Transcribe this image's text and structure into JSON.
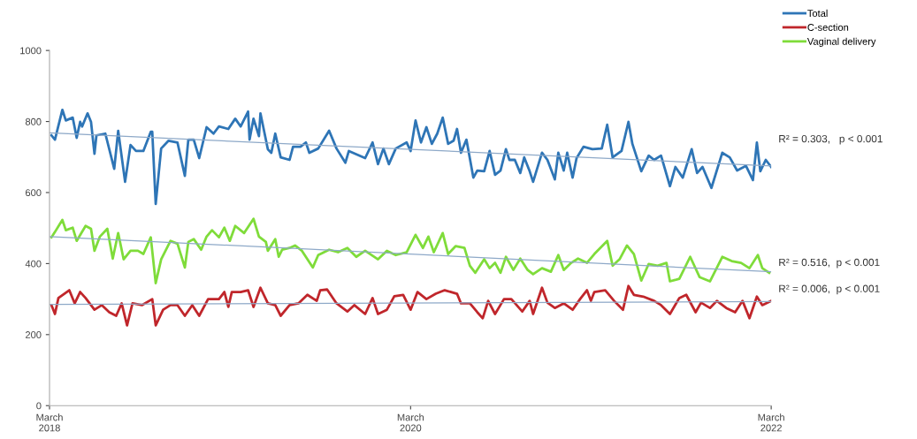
{
  "chart_data": {
    "type": "line",
    "xlim": [
      "2018-03-01",
      "2022-03-01"
    ],
    "xticks": [
      {
        "value": "2018-03-01",
        "label": "March\n2018"
      },
      {
        "value": "2020-03-01",
        "label": "March\n2020"
      },
      {
        "value": "2022-03-01",
        "label": "March\n2022"
      }
    ],
    "ylim": [
      0,
      1000
    ],
    "yticks": [
      0,
      200,
      400,
      600,
      800,
      1000
    ],
    "legend": "top right",
    "marker": "none",
    "line_style": "solid",
    "series": [
      {
        "name": "Total",
        "color": "#2e75b6",
        "x": [
          "2018-03-05",
          "2018-03-12",
          "2018-03-27",
          "2018-04-03",
          "2018-04-17",
          "2018-04-25",
          "2018-05-02",
          "2018-05-06",
          "2018-05-17",
          "2018-05-24",
          "2018-05-31",
          "2018-06-04",
          "2018-06-22",
          "2018-07-10",
          "2018-07-18",
          "2018-08-01",
          "2018-08-12",
          "2018-08-23",
          "2018-09-07",
          "2018-09-22",
          "2018-09-25",
          "2018-10-02",
          "2018-10-13",
          "2018-10-28",
          "2018-11-15",
          "2018-11-30",
          "2018-12-07",
          "2018-12-18",
          "2018-12-29",
          "2019-01-13",
          "2019-01-27",
          "2019-02-07",
          "2019-02-26",
          "2019-03-12",
          "2019-03-23",
          "2019-04-07",
          "2019-04-10",
          "2019-04-18",
          "2019-04-29",
          "2019-05-02",
          "2019-05-17",
          "2019-05-24",
          "2019-06-01",
          "2019-06-12",
          "2019-06-30",
          "2019-07-07",
          "2019-07-22",
          "2019-08-02",
          "2019-08-09",
          "2019-08-27",
          "2019-09-18",
          "2019-10-03",
          "2019-10-21",
          "2019-10-28",
          "2019-11-30",
          "2019-12-15",
          "2019-12-26",
          "2020-01-06",
          "2020-01-17",
          "2020-01-31",
          "2020-02-22",
          "2020-03-01",
          "2020-03-11",
          "2020-03-22",
          "2020-04-02",
          "2020-04-13",
          "2020-04-24",
          "2020-05-05",
          "2020-05-16",
          "2020-05-27",
          "2020-06-03",
          "2020-06-11",
          "2020-06-22",
          "2020-07-06",
          "2020-07-14",
          "2020-07-28",
          "2020-08-08",
          "2020-08-19",
          "2020-08-30",
          "2020-09-10",
          "2020-09-17",
          "2020-09-28",
          "2020-10-09",
          "2020-10-17",
          "2020-10-28",
          "2020-11-04",
          "2020-11-22",
          "2020-12-03",
          "2020-12-18",
          "2020-12-25",
          "2021-01-05",
          "2021-01-12",
          "2021-01-23",
          "2021-01-31",
          "2021-02-14",
          "2021-03-04",
          "2021-03-23",
          "2021-04-03",
          "2021-04-14",
          "2021-05-02",
          "2021-05-16",
          "2021-05-24",
          "2021-06-11",
          "2021-06-26",
          "2021-07-07",
          "2021-07-21",
          "2021-08-08",
          "2021-08-19",
          "2021-09-03",
          "2021-09-21",
          "2021-10-02",
          "2021-10-13",
          "2021-10-31",
          "2021-11-22",
          "2021-12-07",
          "2021-12-22",
          "2022-01-09",
          "2022-01-23",
          "2022-01-31",
          "2022-02-07",
          "2022-02-18",
          "2022-03-01"
        ],
        "values": [
          761,
          749,
          833,
          803,
          811,
          754,
          799,
          786,
          823,
          799,
          709,
          761,
          766,
          667,
          774,
          630,
          734,
          717,
          717,
          771,
          771,
          568,
          724,
          746,
          741,
          647,
          749,
          749,
          697,
          784,
          766,
          786,
          779,
          808,
          786,
          828,
          749,
          808,
          759,
          823,
          722,
          712,
          766,
          699,
          692,
          729,
          729,
          741,
          712,
          724,
          774,
          724,
          684,
          717,
          697,
          741,
          680,
          724,
          680,
          724,
          741,
          717,
          803,
          741,
          784,
          737,
          766,
          811,
          737,
          746,
          779,
          712,
          749,
          642,
          662,
          660,
          717,
          650,
          662,
          722,
          692,
          692,
          655,
          699,
          660,
          630,
          712,
          692,
          637,
          712,
          662,
          712,
          642,
          697,
          729,
          722,
          724,
          791,
          699,
          717,
          799,
          737,
          660,
          704,
          692,
          704,
          618,
          672,
          642,
          722,
          655,
          672,
          613,
          712,
          699,
          662,
          675,
          635,
          741,
          660,
          692,
          672
        ]
      },
      {
        "name": "C-section",
        "color": "#c0262b",
        "x": [
          "2018-03-05",
          "2018-03-12",
          "2018-03-19",
          "2018-04-10",
          "2018-04-21",
          "2018-05-02",
          "2018-05-13",
          "2018-05-31",
          "2018-06-15",
          "2018-06-30",
          "2018-07-14",
          "2018-07-25",
          "2018-08-05",
          "2018-08-16",
          "2018-09-04",
          "2018-09-25",
          "2018-10-02",
          "2018-10-17",
          "2018-11-01",
          "2018-11-15",
          "2018-11-30",
          "2018-12-15",
          "2018-12-29",
          "2019-01-16",
          "2019-02-07",
          "2019-02-18",
          "2019-02-26",
          "2019-03-05",
          "2019-03-23",
          "2019-04-07",
          "2019-04-18",
          "2019-05-02",
          "2019-05-17",
          "2019-06-01",
          "2019-06-12",
          "2019-06-30",
          "2019-07-18",
          "2019-08-05",
          "2019-08-24",
          "2019-08-31",
          "2019-09-14",
          "2019-10-03",
          "2019-10-25",
          "2019-11-08",
          "2019-11-30",
          "2019-12-15",
          "2019-12-26",
          "2020-01-13",
          "2020-01-28",
          "2020-02-15",
          "2020-03-01",
          "2020-03-15",
          "2020-04-02",
          "2020-04-21",
          "2020-05-09",
          "2020-06-03",
          "2020-06-11",
          "2020-06-29",
          "2020-07-14",
          "2020-07-25",
          "2020-08-05",
          "2020-08-19",
          "2020-09-06",
          "2020-09-21",
          "2020-10-13",
          "2020-10-28",
          "2020-11-04",
          "2020-11-22",
          "2020-12-03",
          "2020-12-18",
          "2021-01-05",
          "2021-01-23",
          "2021-02-07",
          "2021-02-21",
          "2021-03-01",
          "2021-03-08",
          "2021-03-30",
          "2021-04-17",
          "2021-05-05",
          "2021-05-16",
          "2021-05-27",
          "2021-06-15",
          "2021-07-07",
          "2021-07-21",
          "2021-08-08",
          "2021-08-27",
          "2021-09-10",
          "2021-09-29",
          "2021-10-10",
          "2021-10-28",
          "2021-11-11",
          "2021-11-30",
          "2021-12-18",
          "2022-01-02",
          "2022-01-16",
          "2022-01-31",
          "2022-02-11",
          "2022-03-01"
        ],
        "values": [
          283,
          258,
          303,
          325,
          288,
          320,
          303,
          270,
          283,
          263,
          253,
          288,
          226,
          288,
          283,
          300,
          226,
          270,
          283,
          283,
          253,
          283,
          253,
          300,
          300,
          320,
          278,
          320,
          320,
          325,
          278,
          332,
          288,
          283,
          253,
          283,
          288,
          312,
          295,
          325,
          327,
          288,
          265,
          283,
          258,
          303,
          258,
          270,
          308,
          312,
          270,
          320,
          300,
          315,
          325,
          315,
          288,
          288,
          263,
          246,
          295,
          258,
          300,
          300,
          265,
          295,
          258,
          332,
          290,
          275,
          288,
          270,
          300,
          325,
          295,
          320,
          325,
          295,
          270,
          337,
          312,
          307,
          295,
          283,
          258,
          303,
          312,
          263,
          290,
          275,
          295,
          275,
          263,
          295,
          246,
          307,
          283,
          295
        ]
      },
      {
        "name": "Vaginal delivery",
        "color": "#7fdc3a",
        "x": [
          "2018-03-05",
          "2018-03-12",
          "2018-03-27",
          "2018-04-03",
          "2018-04-17",
          "2018-04-25",
          "2018-05-13",
          "2018-05-24",
          "2018-05-31",
          "2018-06-11",
          "2018-06-26",
          "2018-07-07",
          "2018-07-18",
          "2018-07-29",
          "2018-08-12",
          "2018-08-27",
          "2018-09-07",
          "2018-09-22",
          "2018-10-02",
          "2018-10-13",
          "2018-11-01",
          "2018-11-15",
          "2018-11-30",
          "2018-12-07",
          "2018-12-18",
          "2019-01-02",
          "2019-01-13",
          "2019-01-24",
          "2019-02-07",
          "2019-02-18",
          "2019-03-01",
          "2019-03-12",
          "2019-03-30",
          "2019-04-18",
          "2019-04-29",
          "2019-05-13",
          "2019-05-17",
          "2019-06-01",
          "2019-06-08",
          "2019-06-15",
          "2019-06-30",
          "2019-07-11",
          "2019-07-25",
          "2019-08-16",
          "2019-08-27",
          "2019-09-18",
          "2019-10-06",
          "2019-10-25",
          "2019-11-12",
          "2019-11-30",
          "2019-12-26",
          "2020-01-13",
          "2020-01-31",
          "2020-02-22",
          "2020-03-11",
          "2020-03-26",
          "2020-04-06",
          "2020-04-17",
          "2020-05-05",
          "2020-05-16",
          "2020-05-31",
          "2020-06-18",
          "2020-06-29",
          "2020-07-10",
          "2020-07-28",
          "2020-08-08",
          "2020-08-19",
          "2020-08-30",
          "2020-09-10",
          "2020-09-25",
          "2020-10-09",
          "2020-10-24",
          "2020-11-04",
          "2020-11-22",
          "2020-12-10",
          "2020-12-25",
          "2021-01-05",
          "2021-01-20",
          "2021-02-03",
          "2021-02-21",
          "2021-03-08",
          "2021-04-03",
          "2021-04-14",
          "2021-04-28",
          "2021-05-13",
          "2021-05-27",
          "2021-06-11",
          "2021-06-26",
          "2021-07-14",
          "2021-08-01",
          "2021-08-08",
          "2021-08-27",
          "2021-09-18",
          "2021-10-07",
          "2021-10-28",
          "2021-11-22",
          "2021-12-11",
          "2021-12-30",
          "2022-01-16",
          "2022-02-02",
          "2022-02-11",
          "2022-02-25"
        ],
        "values": [
          474,
          489,
          523,
          494,
          501,
          464,
          506,
          498,
          436,
          476,
          498,
          414,
          486,
          412,
          436,
          436,
          427,
          474,
          345,
          412,
          464,
          456,
          389,
          461,
          469,
          439,
          476,
          494,
          474,
          501,
          464,
          506,
          486,
          526,
          476,
          461,
          436,
          469,
          419,
          439,
          444,
          451,
          436,
          389,
          424,
          439,
          432,
          444,
          419,
          436,
          412,
          436,
          424,
          432,
          481,
          444,
          476,
          432,
          486,
          427,
          449,
          444,
          394,
          374,
          412,
          387,
          402,
          374,
          419,
          382,
          414,
          382,
          370,
          387,
          377,
          424,
          382,
          402,
          414,
          402,
          427,
          464,
          394,
          412,
          451,
          427,
          352,
          399,
          394,
          402,
          350,
          357,
          419,
          362,
          350,
          419,
          407,
          402,
          387,
          424,
          387,
          374
        ]
      },
      {
        "color": "#8ea9c8",
        "x": [
          "2018-03-01",
          "2022-03-01"
        ],
        "values": [
          768,
          675
        ]
      },
      {
        "color": "#8ea9c8",
        "x": [
          "2018-03-01",
          "2022-03-01"
        ],
        "values": [
          285,
          293
        ]
      },
      {
        "color": "#8ea9c8",
        "x": [
          "2018-03-01",
          "2022-03-01"
        ],
        "values": [
          476,
          377
        ]
      }
    ],
    "annotations": [
      "R² = 0.303,   p < 0.001",
      "R² = 0.516,  p < 0.001",
      "R² = 0.006,  p < 0.001"
    ]
  }
}
